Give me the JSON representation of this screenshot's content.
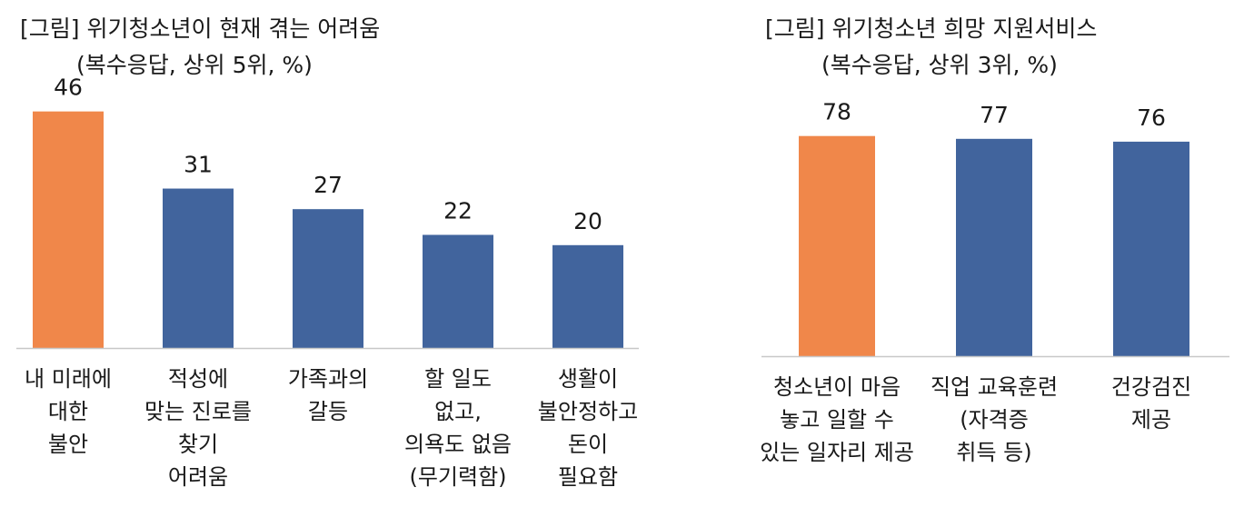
{
  "chart_data": [
    {
      "type": "bar",
      "title": "[그림] 위기청소년이 현재 겪는 어려움",
      "subtitle": "(복수응답, 상위 5위, %)",
      "categories": [
        [
          "내 미래에",
          "대한",
          "불안"
        ],
        [
          "적성에",
          "맞는 진로를",
          "찾기",
          "어려움"
        ],
        [
          "가족과의",
          "갈등"
        ],
        [
          "할 일도",
          "없고,",
          "의욕도 없음",
          "(무기력함)"
        ],
        [
          "생활이",
          "불안정하고",
          "돈이",
          "필요함"
        ]
      ],
      "values": [
        46,
        31,
        27,
        22,
        20
      ],
      "highlight_index": 0,
      "ylim": [
        0,
        50
      ],
      "grid": false,
      "legend": "none",
      "xlabel": "",
      "ylabel": ""
    },
    {
      "type": "bar",
      "title": "[그림] 위기청소년 희망 지원서비스",
      "subtitle": "(복수응답, 상위 3위, %)",
      "categories": [
        [
          "청소년이 마음",
          "놓고 일할 수",
          "있는 일자리 제공"
        ],
        [
          "직업 교육훈련",
          "(자격증",
          "취득 등)"
        ],
        [
          "건강검진",
          "제공"
        ]
      ],
      "values": [
        78,
        77,
        76
      ],
      "highlight_index": 0,
      "ylim": [
        0,
        94
      ],
      "grid": false,
      "legend": "none",
      "xlabel": "",
      "ylabel": ""
    }
  ],
  "colors": {
    "highlight": "#F0874A",
    "bar": "#41649D",
    "axis": "#C8C8C8",
    "text": "#1a1a1a"
  }
}
